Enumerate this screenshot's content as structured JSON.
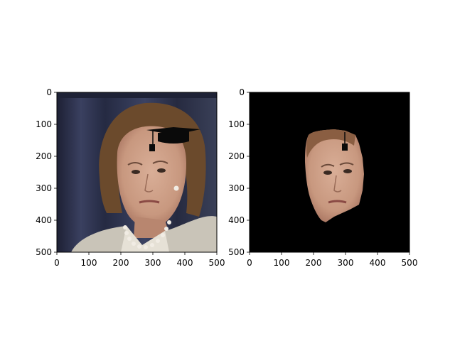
{
  "chart_data": [
    {
      "type": "image",
      "title": "",
      "xlabel": "",
      "ylabel": "",
      "xlim": [
        0,
        500
      ],
      "ylim": [
        500,
        0
      ],
      "x_ticks": [
        0,
        100,
        200,
        300,
        400,
        500
      ],
      "y_ticks": [
        0,
        100,
        200,
        300,
        400,
        500
      ],
      "content": "portrait photo with a graduation cap overlay",
      "overlay": {
        "cap": {
          "x": [
            290,
            445
          ],
          "y": [
            115,
            215
          ]
        }
      }
    },
    {
      "type": "image",
      "title": "",
      "xlabel": "",
      "ylabel": "",
      "xlim": [
        0,
        500
      ],
      "ylim": [
        500,
        0
      ],
      "x_ticks": [
        0,
        100,
        200,
        300,
        400,
        500
      ],
      "y_ticks": [
        0,
        100,
        200,
        300,
        400,
        500
      ],
      "background": "#000000",
      "content": "segmented face region on black background with cap tassel",
      "overlay": {
        "tassel": {
          "x": [
            290,
            305
          ],
          "y": [
            125,
            185
          ]
        }
      }
    }
  ],
  "colors": {
    "suit": "#c9c4b8",
    "skin": "#caa08a",
    "hair": "#6b4a2c",
    "curtain": "#2b3048",
    "cap": "#0a0a0a"
  }
}
